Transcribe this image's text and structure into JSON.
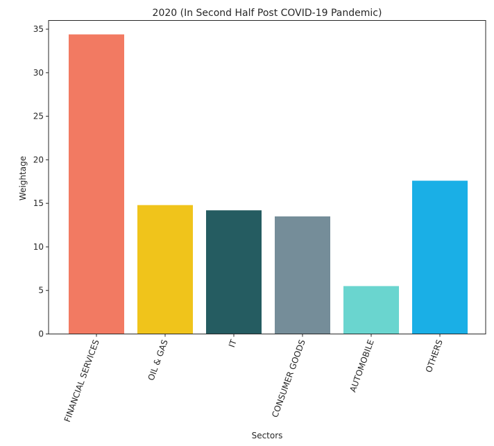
{
  "chart_data": {
    "type": "bar",
    "title": "2020 (In Second Half Post COVID-19 Pandemic)",
    "xlabel": "Sectors",
    "ylabel": "Weightage",
    "categories": [
      "FINANCIAL SERVICES",
      "OIL & GAS",
      "IT",
      "CONSUMER GOODS",
      "AUTOMOBILE",
      "OTHERS"
    ],
    "values": [
      34.4,
      14.8,
      14.2,
      13.5,
      5.5,
      17.6
    ],
    "colors": [
      "#f27a62",
      "#f0c41b",
      "#255c61",
      "#758d99",
      "#6ad5cf",
      "#1aafe6"
    ],
    "ylim": [
      0,
      36
    ],
    "yticks": [
      0,
      5,
      10,
      15,
      20,
      25,
      30,
      35
    ],
    "grid": false,
    "legend": "none"
  }
}
